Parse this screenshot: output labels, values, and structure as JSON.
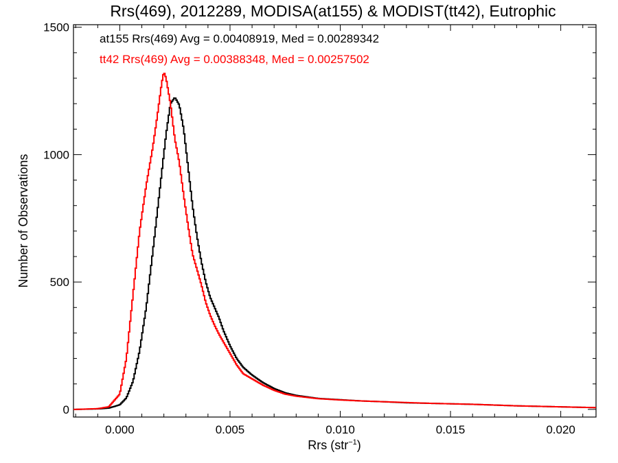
{
  "chart_data": {
    "type": "line",
    "title": "Rrs(469), 2012289, MODISA(at155) & MODIST(tt42), Eutrophic",
    "xlabel_main": "Rrs (str",
    "xlabel_sup": "−1",
    "xlabel_close": ")",
    "ylabel": "Number of Observations",
    "xlim": [
      -0.0021,
      0.0216
    ],
    "ylim": [
      -30,
      1510
    ],
    "x_ticks": [
      0.0,
      0.005,
      0.01,
      0.015,
      0.02
    ],
    "x_tick_labels": [
      "0.000",
      "0.005",
      "0.010",
      "0.015",
      "0.020"
    ],
    "x_minor_step": 0.001,
    "y_ticks": [
      0,
      500,
      1000,
      1500
    ],
    "y_tick_labels": [
      "0",
      "500",
      "1000",
      "1500"
    ],
    "y_minor_step": 100,
    "grid": false,
    "annotations": [
      {
        "text": "at155 Rrs(469) Avg = 0.00408919, Med = 0.00289342",
        "color": "#000000"
      },
      {
        "text": "tt42 Rrs(469) Avg = 0.00388348, Med = 0.00257502",
        "color": "#ff0000"
      }
    ],
    "series": [
      {
        "color": "#000000",
        "x": [
          -0.002,
          -0.001,
          -0.0005,
          0.0,
          0.0003,
          0.0006,
          0.0009,
          0.0012,
          0.0015,
          0.0018,
          0.0021,
          0.0023,
          0.0025,
          0.0027,
          0.0029,
          0.0031,
          0.0033,
          0.0035,
          0.0037,
          0.0039,
          0.0041,
          0.0043,
          0.0045,
          0.0047,
          0.005,
          0.0053,
          0.0056,
          0.006,
          0.0065,
          0.007,
          0.0075,
          0.008,
          0.009,
          0.01,
          0.011,
          0.012,
          0.013,
          0.014,
          0.015,
          0.016,
          0.017,
          0.018,
          0.019,
          0.02,
          0.021,
          0.0216
        ],
        "y": [
          0,
          2,
          5,
          18,
          45,
          110,
          230,
          400,
          620,
          850,
          1080,
          1200,
          1225,
          1195,
          1100,
          950,
          800,
          680,
          580,
          500,
          440,
          400,
          360,
          310,
          250,
          200,
          165,
          135,
          105,
          82,
          65,
          55,
          43,
          38,
          33,
          30,
          26,
          24,
          22,
          20,
          17,
          14,
          12,
          10,
          8,
          7
        ]
      },
      {
        "color": "#ff0000",
        "x": [
          -0.002,
          -0.001,
          -0.0005,
          0.0,
          0.0003,
          0.0006,
          0.0009,
          0.0012,
          0.0015,
          0.0017,
          0.0019,
          0.002,
          0.0021,
          0.0023,
          0.0025,
          0.0027,
          0.0029,
          0.0031,
          0.0033,
          0.0035,
          0.0037,
          0.0039,
          0.0041,
          0.0043,
          0.0045,
          0.0047,
          0.005,
          0.0053,
          0.0056,
          0.006,
          0.0065,
          0.007,
          0.0075,
          0.008,
          0.009,
          0.01,
          0.011,
          0.012,
          0.013,
          0.014,
          0.015,
          0.016,
          0.017,
          0.018,
          0.019,
          0.02,
          0.021,
          0.0216
        ],
        "y": [
          0,
          3,
          10,
          60,
          200,
          450,
          700,
          880,
          1030,
          1150,
          1280,
          1325,
          1300,
          1200,
          1060,
          970,
          840,
          720,
          610,
          550,
          490,
          420,
          370,
          330,
          295,
          265,
          220,
          175,
          140,
          120,
          95,
          75,
          60,
          52,
          42,
          37,
          33,
          30,
          27,
          24,
          22,
          20,
          17,
          14,
          12,
          10,
          8,
          7
        ]
      }
    ]
  }
}
